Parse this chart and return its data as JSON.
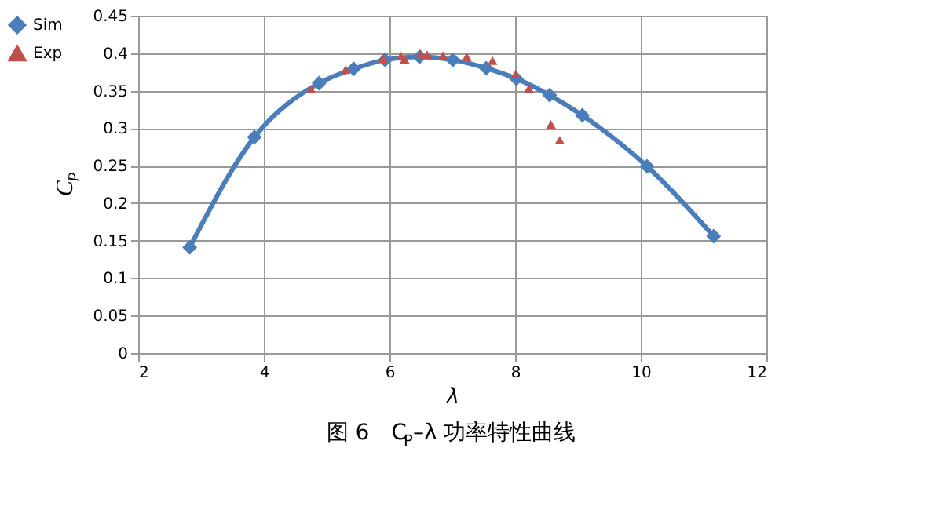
{
  "chart_data": {
    "type": "line",
    "annotations": [
      "图 6　C$_{P}$–λ 功率特性曲线"
    ],
    "xlabel": "λ",
    "ylabel": "C$_{P}$",
    "xlim": [
      2,
      12
    ],
    "xticks": [
      2,
      4,
      6,
      8,
      10,
      12
    ],
    "ylim": [
      0,
      0.45
    ],
    "yticks": [
      0,
      0.05,
      0.1,
      0.15,
      0.2,
      0.25,
      0.3,
      0.35,
      0.4,
      0.45
    ],
    "grid": true,
    "legend": "top left",
    "series": [
      {
        "name": "Sim",
        "type": "line",
        "marker": "diamond",
        "color": "#4a7ebb",
        "x": [
          2.82,
          3.85,
          4.88,
          5.43,
          5.93,
          6.48,
          7.01,
          7.54,
          8.02,
          8.55,
          9.07,
          10.1,
          11.16
        ],
        "values": [
          0.141,
          0.288,
          0.36,
          0.379,
          0.391,
          0.395,
          0.391,
          0.38,
          0.366,
          0.344,
          0.317,
          0.249,
          0.156
        ]
      },
      {
        "name": "Exp",
        "type": "scatter",
        "marker": "triangle",
        "color": "#c0504d",
        "x": [
          4.75,
          5.3,
          5.9,
          6.18,
          6.24,
          6.5,
          6.6,
          6.85,
          7.23,
          7.64,
          8.01,
          8.22,
          8.57,
          8.71
        ],
        "values": [
          0.352,
          0.378,
          0.393,
          0.396,
          0.392,
          0.399,
          0.398,
          0.397,
          0.395,
          0.39,
          0.372,
          0.353,
          0.305,
          0.284
        ]
      }
    ]
  }
}
